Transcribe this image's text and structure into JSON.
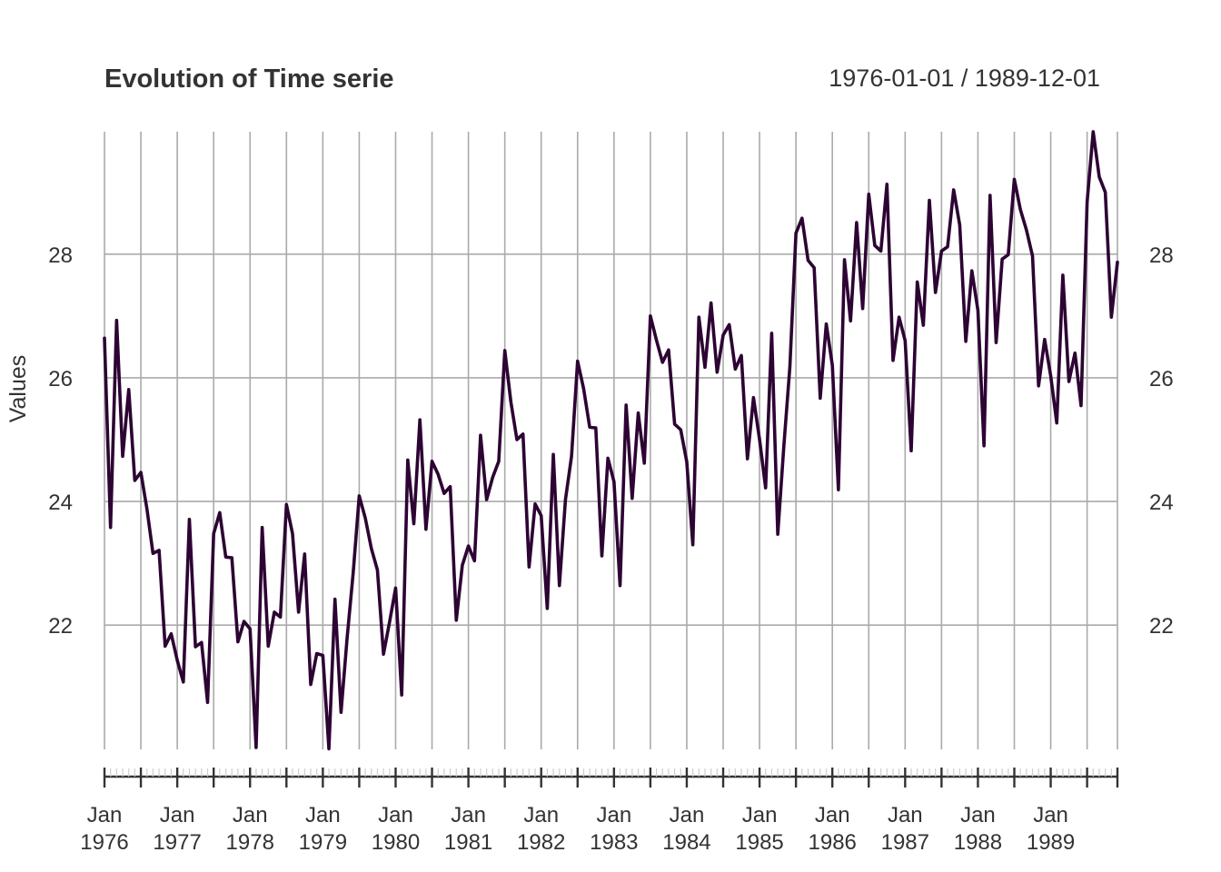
{
  "chart_data": {
    "type": "line",
    "title": "Evolution of Time serie",
    "date_range": "1976-01-01 / 1989-12-01",
    "xlabel": "",
    "ylabel": "Values",
    "x_start": "1976-01",
    "x_end": "1989-12",
    "xlim": [
      "1976-01",
      "1989-12"
    ],
    "ylim": [
      20.02,
      29.98
    ],
    "y_ticks": [
      22,
      24,
      26,
      28
    ],
    "y_tick_labels": [
      "22",
      "24",
      "26",
      "28"
    ],
    "x_tick_labels": [
      {
        "month": "Jan",
        "year": "1976"
      },
      {
        "month": "Jan",
        "year": "1977"
      },
      {
        "month": "Jan",
        "year": "1978"
      },
      {
        "month": "Jan",
        "year": "1979"
      },
      {
        "month": "Jan",
        "year": "1980"
      },
      {
        "month": "Jan",
        "year": "1981"
      },
      {
        "month": "Jan",
        "year": "1982"
      },
      {
        "month": "Jan",
        "year": "1983"
      },
      {
        "month": "Jan",
        "year": "1984"
      },
      {
        "month": "Jan",
        "year": "1985"
      },
      {
        "month": "Jan",
        "year": "1986"
      },
      {
        "month": "Jan",
        "year": "1987"
      },
      {
        "month": "Jan",
        "year": "1988"
      },
      {
        "month": "Jan",
        "year": "1989"
      }
    ],
    "grid": true,
    "legend": "none",
    "line_color": "#2d0433",
    "grid_color": "#aaaaaa",
    "series": [
      {
        "values": [
          26.64,
          23.58,
          26.93,
          24.73,
          25.81,
          24.34,
          24.47,
          23.88,
          23.16,
          23.21,
          21.66,
          21.86,
          21.43,
          21.08,
          23.71,
          21.65,
          21.72,
          20.75,
          23.48,
          23.82,
          23.1,
          23.09,
          21.73,
          22.06,
          21.94,
          20.02,
          23.58,
          21.66,
          22.21,
          22.13,
          23.95,
          23.48,
          22.21,
          23.15,
          21.04,
          21.54,
          21.51,
          20.0,
          22.42,
          20.59,
          21.79,
          22.84,
          24.09,
          23.73,
          23.24,
          22.89,
          21.53,
          22.05,
          22.6,
          20.87,
          24.67,
          23.64,
          25.32,
          23.55,
          24.65,
          24.44,
          24.13,
          24.24,
          22.08,
          22.97,
          23.28,
          23.04,
          25.07,
          24.03,
          24.39,
          24.65,
          26.44,
          25.61,
          25.0,
          25.09,
          22.94,
          23.96,
          23.77,
          22.27,
          24.76,
          22.64,
          24.03,
          24.73,
          26.27,
          25.82,
          25.2,
          25.19,
          23.12,
          24.7,
          24.32,
          22.64,
          25.56,
          24.05,
          25.43,
          24.62,
          27.0,
          26.61,
          26.25,
          26.45,
          25.25,
          25.16,
          24.64,
          23.3,
          26.98,
          26.17,
          27.21,
          26.09,
          26.69,
          26.86,
          26.14,
          26.36,
          24.69,
          25.68,
          25.0,
          24.22,
          26.72,
          23.47,
          24.89,
          26.18,
          28.34,
          28.58,
          27.9,
          27.78,
          25.67,
          26.87,
          26.2,
          24.19,
          27.91,
          26.92,
          28.51,
          27.12,
          28.97,
          28.14,
          28.05,
          29.13,
          26.28,
          26.98,
          26.6,
          24.82,
          27.55,
          26.85,
          28.87,
          27.38,
          28.05,
          28.12,
          29.04,
          28.47,
          26.59,
          27.73,
          27.09,
          24.9,
          28.95,
          26.57,
          27.92,
          27.99,
          29.21,
          28.72,
          28.39,
          27.97,
          25.87,
          26.62,
          26.03,
          25.27,
          27.66,
          25.94,
          26.4,
          25.55,
          28.84,
          29.98,
          29.25,
          29.0,
          26.98,
          27.87
        ]
      }
    ]
  }
}
